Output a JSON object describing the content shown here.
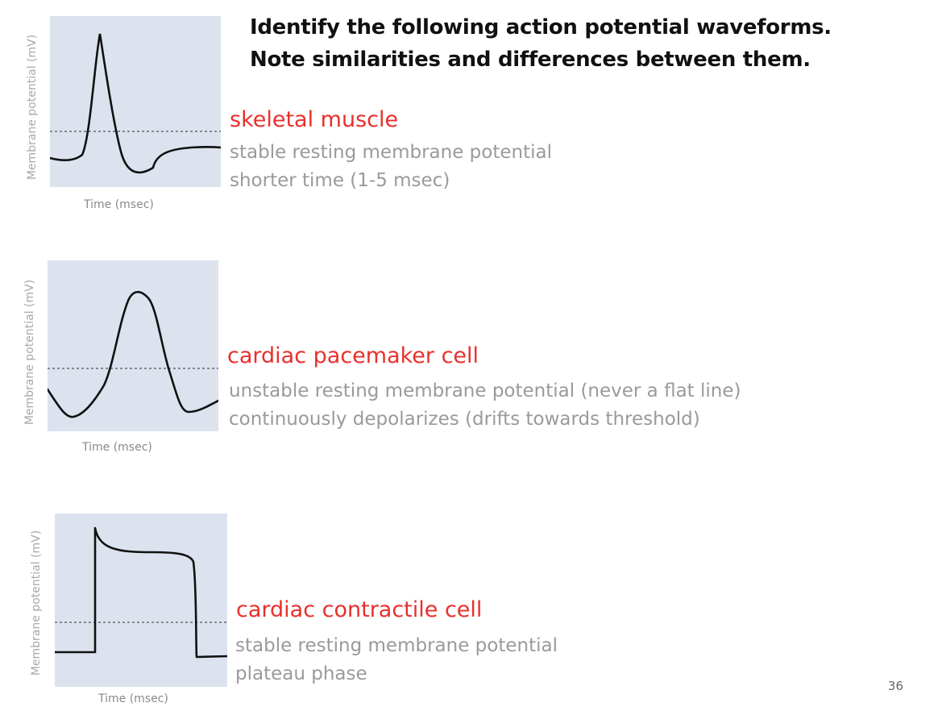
{
  "slide": {
    "title_line1": "Identify the following action potential waveforms.",
    "title_line2": "Note similarities and differences between them.",
    "page_number": "36"
  },
  "panels": [
    {
      "y_label": "Membrane potential (mV)",
      "x_label": "Time (msec)",
      "cell_type": "skeletal muscle",
      "notes": [
        "stable resting membrane potential",
        "shorter time (1-5 msec)"
      ]
    },
    {
      "y_label": "Membrane potential (mV)",
      "x_label": "Time (msec)",
      "cell_type": "cardiac pacemaker cell",
      "notes": [
        "unstable resting membrane potential (never a flat line)",
        "continuously depolarizes (drifts towards threshold)"
      ]
    },
    {
      "y_label": "Membrane potential (mV)",
      "x_label": "Time (msec)",
      "cell_type": "cardiac contractile cell",
      "notes": [
        "stable resting membrane potential",
        "plateau phase"
      ]
    }
  ],
  "colors": {
    "panel_bg": "#dde2ef",
    "cell_type_text": "#e8302c",
    "note_text": "#9a9a9a",
    "trace": "#111111",
    "threshold_line": "#888888"
  }
}
